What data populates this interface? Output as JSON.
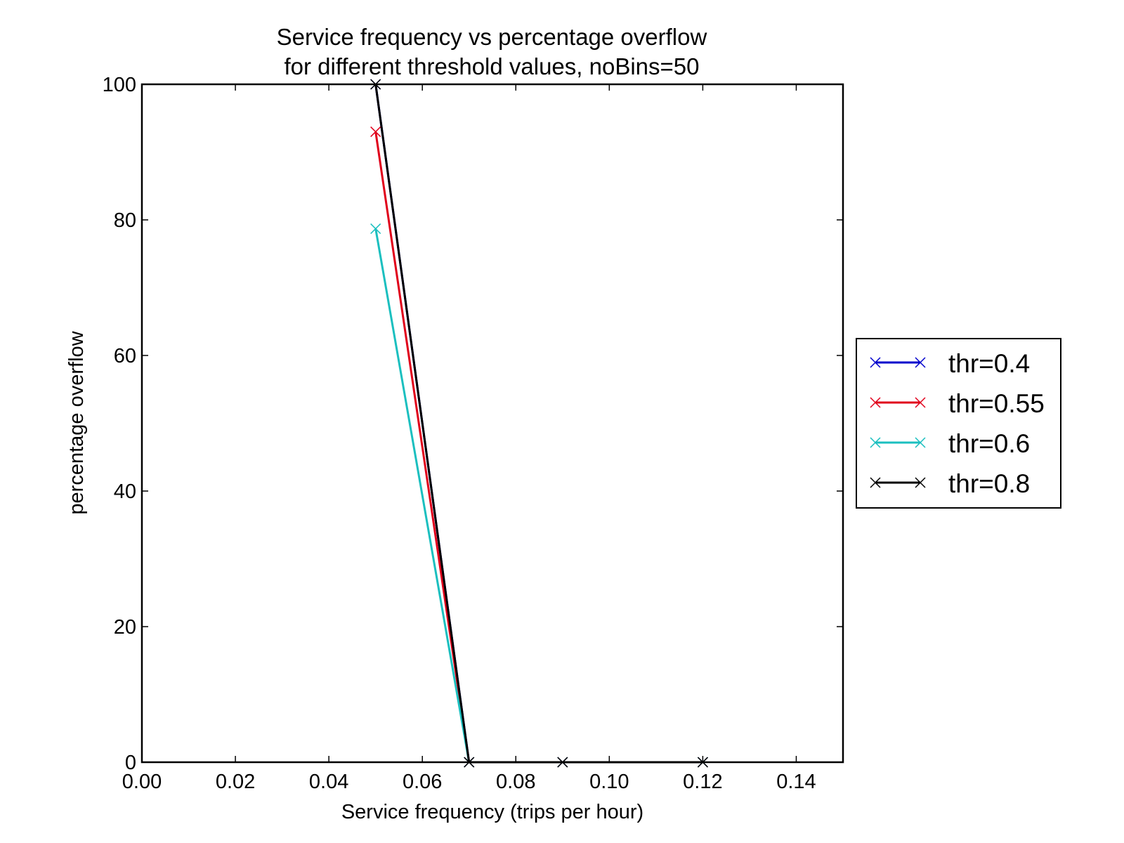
{
  "chart_data": {
    "type": "line",
    "title_line1": "Service frequency vs percentage overflow",
    "title_line2": "for different threshold values, noBins=50",
    "xlabel": "Service frequency (trips per hour)",
    "ylabel": "percentage overflow",
    "xlim": [
      0.0,
      0.15
    ],
    "ylim": [
      0,
      100
    ],
    "xticks": [
      0.0,
      0.02,
      0.04,
      0.06,
      0.08,
      0.1,
      0.12,
      0.14
    ],
    "xtick_labels": [
      "0.00",
      "0.02",
      "0.04",
      "0.06",
      "0.08",
      "0.10",
      "0.12",
      "0.14"
    ],
    "yticks": [
      0,
      20,
      40,
      60,
      80,
      100
    ],
    "ytick_labels": [
      "0",
      "20",
      "40",
      "60",
      "80",
      "100"
    ],
    "grid": false,
    "legend_position": "outside-right",
    "marker": "x",
    "series": [
      {
        "name": "thr=0.4",
        "color": "#0000cc",
        "x": [
          0.05,
          0.07,
          0.09,
          0.12
        ],
        "y": [
          100,
          0,
          0,
          0
        ]
      },
      {
        "name": "thr=0.55",
        "color": "#e0001b",
        "x": [
          0.05,
          0.07,
          0.09,
          0.12
        ],
        "y": [
          93,
          0,
          0,
          0
        ]
      },
      {
        "name": "thr=0.6",
        "color": "#1bbfbf",
        "x": [
          0.05,
          0.07,
          0.09,
          0.12
        ],
        "y": [
          78.7,
          0,
          0,
          0
        ]
      },
      {
        "name": "thr=0.8",
        "color": "#000000",
        "x": [
          0.05,
          0.07,
          0.09,
          0.12
        ],
        "y": [
          100,
          0,
          0,
          0
        ]
      }
    ]
  }
}
